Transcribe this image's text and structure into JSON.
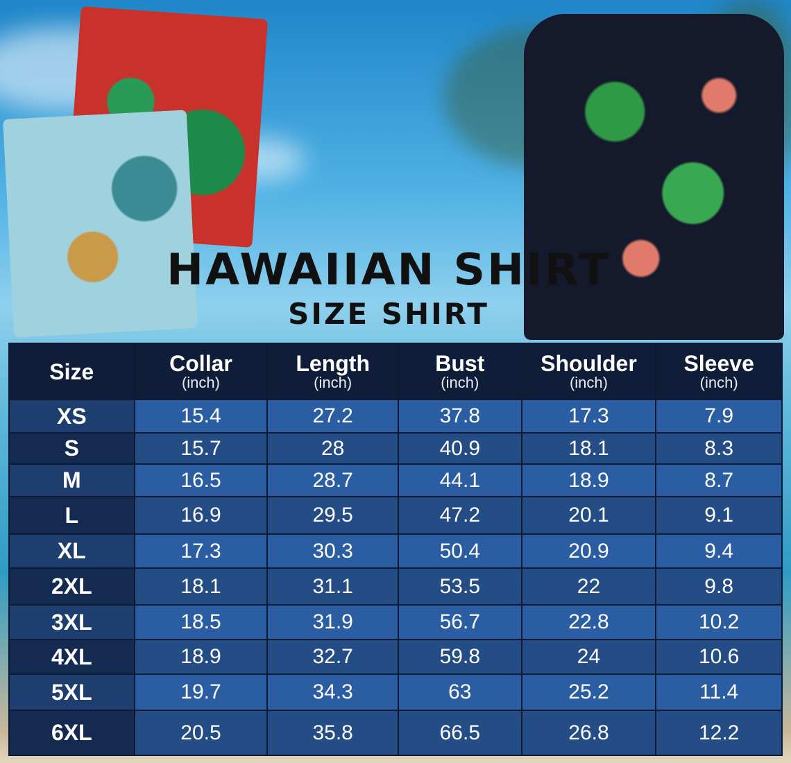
{
  "header": {
    "title": "HAWAIIAN SHIRT",
    "subtitle": "SIZE SHIRT"
  },
  "table": {
    "columns": [
      {
        "label": "Size",
        "unit": ""
      },
      {
        "label": "Collar",
        "unit": "(inch)"
      },
      {
        "label": "Length",
        "unit": "(inch)"
      },
      {
        "label": "Bust",
        "unit": "(inch)"
      },
      {
        "label": "Shoulder",
        "unit": "(inch)"
      },
      {
        "label": "Sleeve",
        "unit": "(inch)"
      }
    ],
    "rows": [
      [
        "XS",
        "15.4",
        "27.2",
        "37.8",
        "17.3",
        "7.9"
      ],
      [
        "S",
        "15.7",
        "28",
        "40.9",
        "18.1",
        "8.3"
      ],
      [
        "M",
        "16.5",
        "28.7",
        "44.1",
        "18.9",
        "8.7"
      ],
      [
        "L",
        "16.9",
        "29.5",
        "47.2",
        "20.1",
        "9.1"
      ],
      [
        "XL",
        "17.3",
        "30.3",
        "50.4",
        "20.9",
        "9.4"
      ],
      [
        "2XL",
        "18.1",
        "31.1",
        "53.5",
        "22",
        "9.8"
      ],
      [
        "3XL",
        "18.5",
        "31.9",
        "56.7",
        "22.8",
        "10.2"
      ],
      [
        "4XL",
        "18.9",
        "32.7",
        "59.8",
        "24",
        "10.6"
      ],
      [
        "5XL",
        "19.7",
        "34.3",
        "63",
        "25.2",
        "11.4"
      ],
      [
        "6XL",
        "20.5",
        "35.8",
        "66.5",
        "26.8",
        "12.2"
      ]
    ]
  },
  "colors": {
    "header_bg": "#0f1d38",
    "row_light": "#2b5da3",
    "row_dark": "#244c85"
  }
}
